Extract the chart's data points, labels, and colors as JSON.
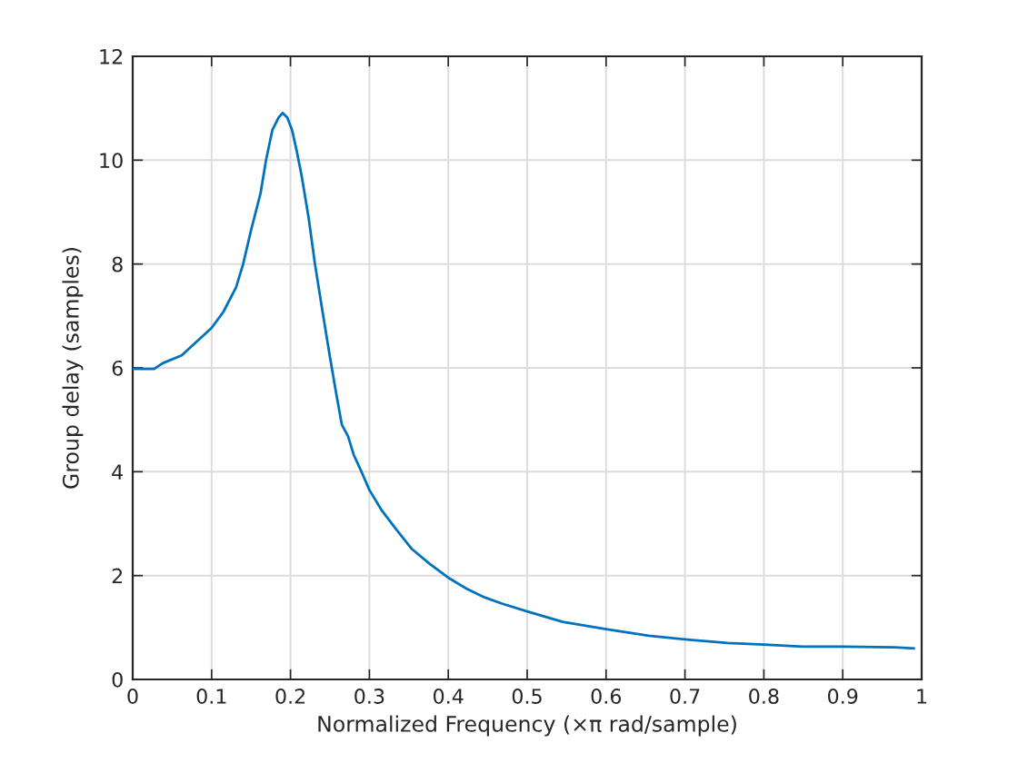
{
  "chart_data": {
    "type": "line",
    "xlabel": "Normalized Frequency (×π rad/sample)",
    "ylabel": "Group delay (samples)",
    "x": [
      0,
      0.027,
      0.038,
      0.062,
      0.085,
      0.1,
      0.115,
      0.131,
      0.14,
      0.15,
      0.162,
      0.169,
      0.177,
      0.185,
      0.19,
      0.196,
      0.202,
      0.208,
      0.214,
      0.223,
      0.231,
      0.24,
      0.25,
      0.258,
      0.265,
      0.273,
      0.28,
      0.29,
      0.3,
      0.315,
      0.335,
      0.354,
      0.377,
      0.4,
      0.423,
      0.446,
      0.468,
      0.5,
      0.545,
      0.6,
      0.654,
      0.7,
      0.754,
      0.8,
      0.85,
      0.9,
      0.965,
      0.99
    ],
    "values": [
      5.98,
      5.98,
      6.09,
      6.24,
      6.56,
      6.77,
      7.08,
      7.55,
      8.0,
      8.65,
      9.36,
      10.0,
      10.58,
      10.82,
      10.91,
      10.82,
      10.58,
      10.17,
      9.71,
      8.89,
      8.0,
      7.14,
      6.21,
      5.5,
      4.91,
      4.68,
      4.33,
      4.0,
      3.65,
      3.27,
      2.87,
      2.51,
      2.22,
      1.96,
      1.75,
      1.58,
      1.46,
      1.31,
      1.11,
      0.97,
      0.84,
      0.77,
      0.7,
      0.67,
      0.63,
      0.63,
      0.62,
      0.6
    ],
    "color": "#0072bd",
    "xlim": [
      0,
      1
    ],
    "ylim": [
      0,
      12
    ],
    "xticks": [
      0,
      0.1,
      0.2,
      0.3,
      0.4,
      0.5,
      0.6,
      0.7,
      0.8,
      0.9,
      1
    ],
    "yticks": [
      0,
      2,
      4,
      6,
      8,
      10,
      12
    ],
    "grid": true,
    "marker": "none",
    "line_style": "solid"
  }
}
